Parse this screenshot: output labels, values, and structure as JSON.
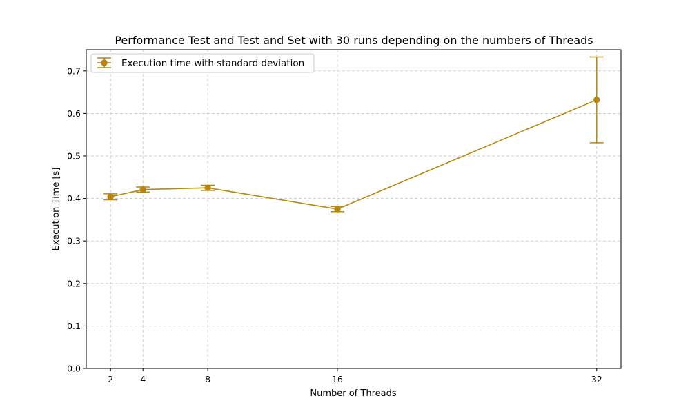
{
  "chart_data": {
    "type": "line",
    "title": "Performance Test and Test and Set with 30 runs depending on the numbers of Threads",
    "xlabel": "Number of Threads",
    "ylabel": "Execution Time [s]",
    "x": [
      2,
      4,
      8,
      16,
      32
    ],
    "x_ticks": [
      "2",
      "4",
      "8",
      "16",
      "32"
    ],
    "xlim": [
      0.5,
      33.5
    ],
    "ylim": [
      0.0,
      0.75
    ],
    "y_ticks": [
      "0.0",
      "0.1",
      "0.2",
      "0.3",
      "0.4",
      "0.5",
      "0.6",
      "0.7"
    ],
    "y_tick_values": [
      0.0,
      0.1,
      0.2,
      0.3,
      0.4,
      0.5,
      0.6,
      0.7
    ],
    "grid": true,
    "legend_position": "top-left",
    "series": [
      {
        "name": "Execution time with standard deviation",
        "values": [
          0.404,
          0.421,
          0.425,
          0.375,
          0.632
        ],
        "errors": [
          0.007,
          0.006,
          0.006,
          0.006,
          0.101
        ],
        "color": "#b8860b",
        "marker": "circle",
        "error_bars": true
      }
    ]
  }
}
